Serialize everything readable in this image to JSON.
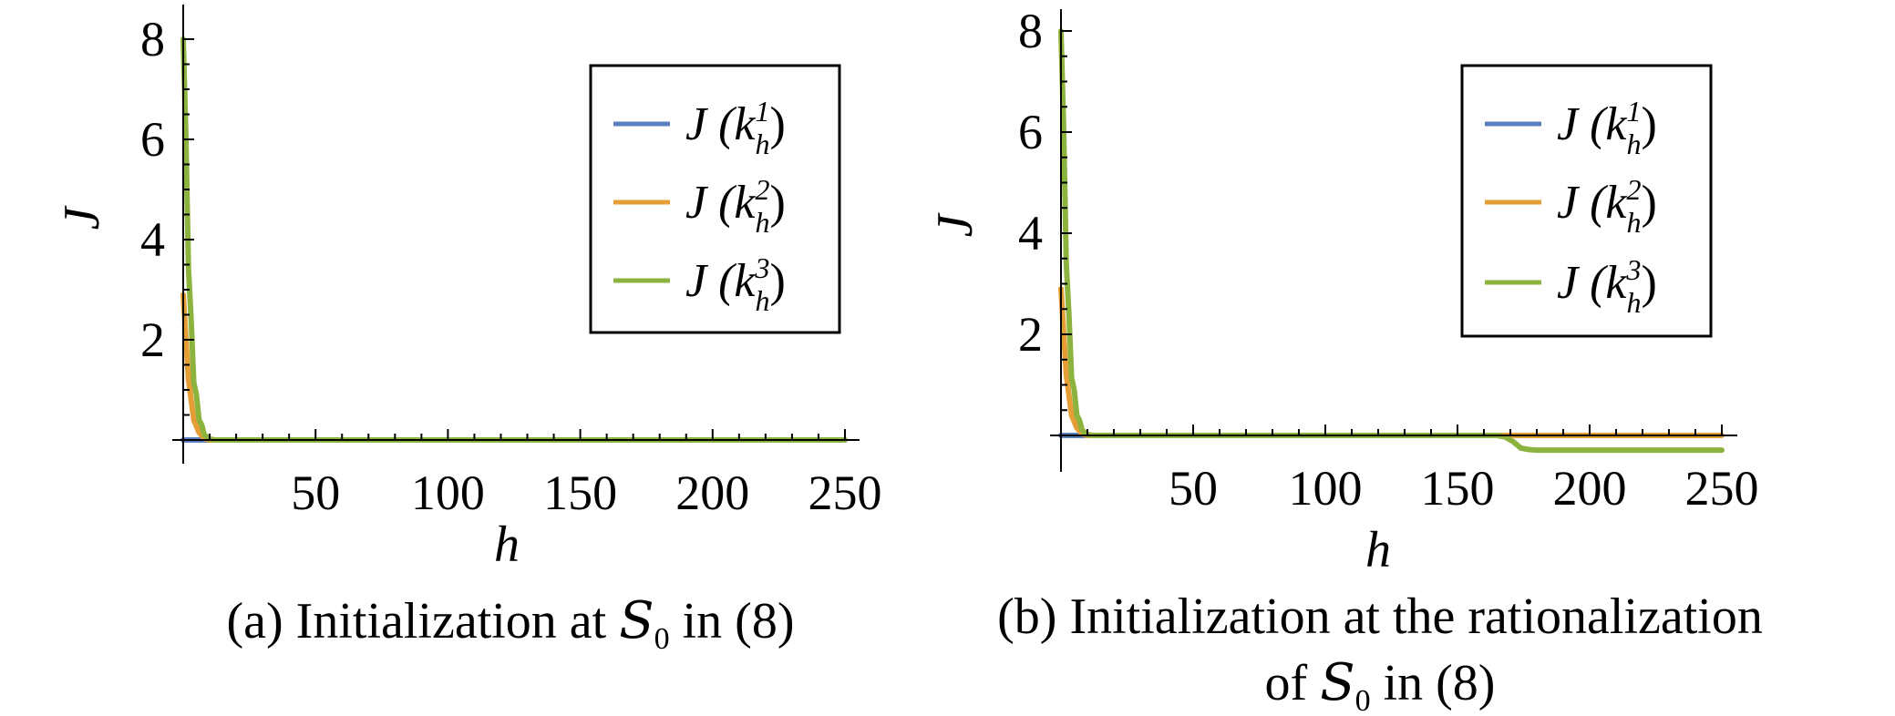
{
  "colors": {
    "J_k1": "#5b7fbe",
    "J_k2": "#e59e36",
    "J_k3": "#8db33f",
    "axis": "#000000",
    "legend_border": "#000000"
  },
  "chart_data": [
    {
      "type": "line",
      "panel": "a",
      "caption_parts": [
        "(a) Initialization at ",
        "S",
        "0",
        " in (8)"
      ],
      "xlabel": "h",
      "ylabel": "J",
      "xlim": [
        0,
        250
      ],
      "ylim": [
        -0.4,
        8.4
      ],
      "xticks": [
        50,
        100,
        150,
        200,
        250
      ],
      "yticks": [
        2,
        4,
        6,
        8
      ],
      "legend_position": "top-right",
      "grid": false,
      "series": [
        {
          "name": "J (k_h^1)",
          "color_key": "J_k1",
          "points": [
            [
              0,
              0
            ],
            [
              250,
              0
            ]
          ]
        },
        {
          "name": "J (k_h^2)",
          "color_key": "J_k2",
          "points": [
            [
              0,
              2.9
            ],
            [
              2,
              1.2
            ],
            [
              4,
              0.4
            ],
            [
              6,
              0.15
            ],
            [
              8,
              0.03
            ],
            [
              10,
              0
            ],
            [
              250,
              0
            ]
          ]
        },
        {
          "name": "J (k_h^3)",
          "color_key": "J_k3",
          "points": [
            [
              0,
              8.0
            ],
            [
              1,
              6.1
            ],
            [
              2,
              3.4
            ],
            [
              3,
              2.4
            ],
            [
              4,
              1.15
            ],
            [
              5,
              0.9
            ],
            [
              6,
              0.4
            ],
            [
              7,
              0.3
            ],
            [
              8,
              0.1
            ],
            [
              10,
              0.02
            ],
            [
              12,
              0
            ],
            [
              250,
              0
            ]
          ]
        }
      ]
    },
    {
      "type": "line",
      "panel": "b",
      "caption_parts": [
        "(b) Initialization at the rationalization",
        "of ",
        "S",
        "0",
        " in (8)"
      ],
      "xlabel": "h",
      "ylabel": "J",
      "xlim": [
        0,
        250
      ],
      "ylim": [
        -0.5,
        8.4
      ],
      "xticks": [
        50,
        100,
        150,
        200,
        250
      ],
      "yticks": [
        2,
        4,
        6,
        8
      ],
      "legend_position": "top-right",
      "grid": false,
      "series": [
        {
          "name": "J (k_h^1)",
          "color_key": "J_k1",
          "points": [
            [
              0,
              0
            ],
            [
              10,
              0
            ]
          ]
        },
        {
          "name": "J (k_h^2)",
          "color_key": "J_k2",
          "points": [
            [
              0,
              2.9
            ],
            [
              2,
              1.2
            ],
            [
              4,
              0.4
            ],
            [
              6,
              0.15
            ],
            [
              8,
              0.03
            ],
            [
              10,
              0
            ],
            [
              250,
              0
            ]
          ]
        },
        {
          "name": "J (k_h^3)",
          "color_key": "J_k3",
          "points": [
            [
              0,
              8.0
            ],
            [
              1,
              6.1
            ],
            [
              2,
              3.4
            ],
            [
              3,
              2.4
            ],
            [
              4,
              1.15
            ],
            [
              5,
              0.9
            ],
            [
              6,
              0.4
            ],
            [
              7,
              0.3
            ],
            [
              8,
              0.1
            ],
            [
              10,
              0.02
            ],
            [
              12,
              0
            ],
            [
              165,
              0
            ],
            [
              168,
              -0.03
            ],
            [
              171,
              -0.12
            ],
            [
              174,
              -0.25
            ],
            [
              177,
              -0.28
            ],
            [
              180,
              -0.29
            ],
            [
              250,
              -0.29
            ]
          ]
        }
      ]
    }
  ],
  "legend_entries": [
    {
      "base": "J (k",
      "sup": "1",
      "sub": "h",
      "close": ")",
      "color_key": "J_k1"
    },
    {
      "base": "J (k",
      "sup": "2",
      "sub": "h",
      "close": ")",
      "color_key": "J_k2"
    },
    {
      "base": "J (k",
      "sup": "3",
      "sub": "h",
      "close": ")",
      "color_key": "J_k3"
    }
  ]
}
